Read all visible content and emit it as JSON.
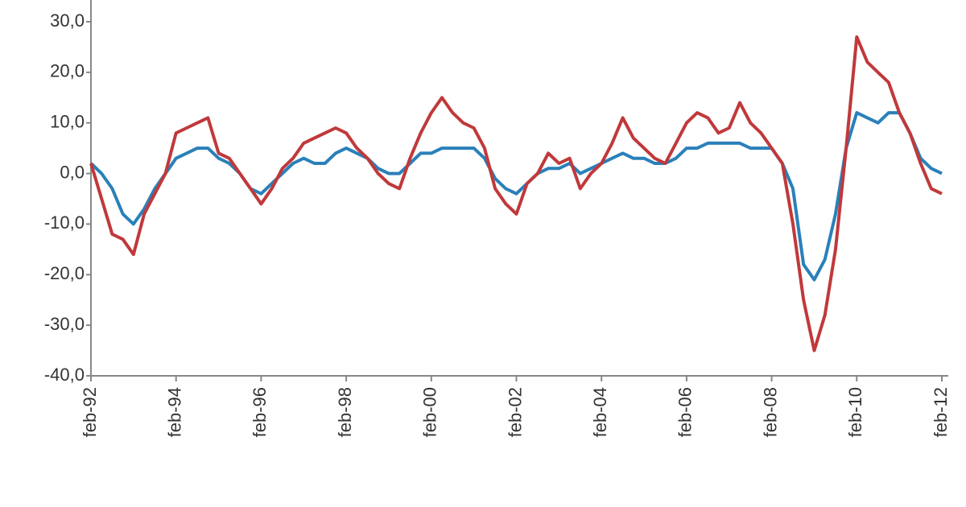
{
  "chart_data": {
    "type": "line",
    "categories": [
      "feb-92",
      null,
      null,
      null,
      null,
      null,
      null,
      null,
      "feb-94",
      null,
      null,
      null,
      null,
      null,
      null,
      null,
      "feb-96",
      null,
      null,
      null,
      null,
      null,
      null,
      null,
      "feb-98",
      null,
      null,
      null,
      null,
      null,
      null,
      null,
      "feb-00",
      null,
      null,
      null,
      null,
      null,
      null,
      null,
      "feb-02",
      null,
      null,
      null,
      null,
      null,
      null,
      null,
      "feb-04",
      null,
      null,
      null,
      null,
      null,
      null,
      null,
      "feb-06",
      null,
      null,
      null,
      null,
      null,
      null,
      null,
      "feb-08",
      null,
      null,
      null,
      null,
      null,
      null,
      null,
      "feb-10",
      null,
      null,
      null,
      null,
      null,
      null,
      null,
      "feb-12"
    ],
    "series": [
      {
        "color": "#2a80b9",
        "values": [
          2,
          0,
          -3,
          -8,
          -10,
          -7,
          -3,
          0,
          3,
          4,
          5,
          5,
          3,
          2,
          0,
          -3,
          -4,
          -2,
          0,
          2,
          3,
          2,
          2,
          4,
          5,
          4,
          3,
          1,
          0,
          0,
          2,
          4,
          4,
          5,
          5,
          5,
          5,
          3,
          -1,
          -3,
          -4,
          -2,
          0,
          1,
          1,
          2,
          0,
          1,
          2,
          3,
          4,
          3,
          3,
          2,
          2,
          3,
          5,
          5,
          6,
          6,
          6,
          6,
          5,
          5,
          5,
          2,
          -3,
          -18,
          -21,
          -17,
          -8,
          5,
          12,
          11,
          10,
          12,
          12,
          8,
          3,
          1,
          0
        ]
      },
      {
        "color": "#c0393b",
        "values": [
          2,
          -5,
          -12,
          -13,
          -16,
          -8,
          -4,
          0,
          8,
          9,
          10,
          11,
          4,
          3,
          0,
          -3,
          -6,
          -3,
          1,
          3,
          6,
          7,
          8,
          9,
          8,
          5,
          3,
          0,
          -2,
          -3,
          3,
          8,
          12,
          15,
          12,
          10,
          9,
          5,
          -3,
          -6,
          -8,
          -2,
          0,
          4,
          2,
          3,
          -3,
          0,
          2,
          6,
          11,
          7,
          5,
          3,
          2,
          6,
          10,
          12,
          11,
          8,
          9,
          14,
          10,
          8,
          5,
          2,
          -10,
          -25,
          -35,
          -28,
          -15,
          5,
          27,
          22,
          20,
          18,
          12,
          8,
          2,
          -3,
          -4
        ]
      }
    ],
    "ylim": [
      -40,
      30
    ],
    "yticks": [
      {
        "value": -40,
        "label": "-40,0"
      },
      {
        "value": -30,
        "label": "-30,0"
      },
      {
        "value": -20,
        "label": "-20,0"
      },
      {
        "value": -10,
        "label": "-10,0"
      },
      {
        "value": 0,
        "label": "0,0"
      },
      {
        "value": 10,
        "label": "10,0"
      },
      {
        "value": 20,
        "label": "20,0"
      },
      {
        "value": 30,
        "label": "30,0"
      }
    ]
  }
}
